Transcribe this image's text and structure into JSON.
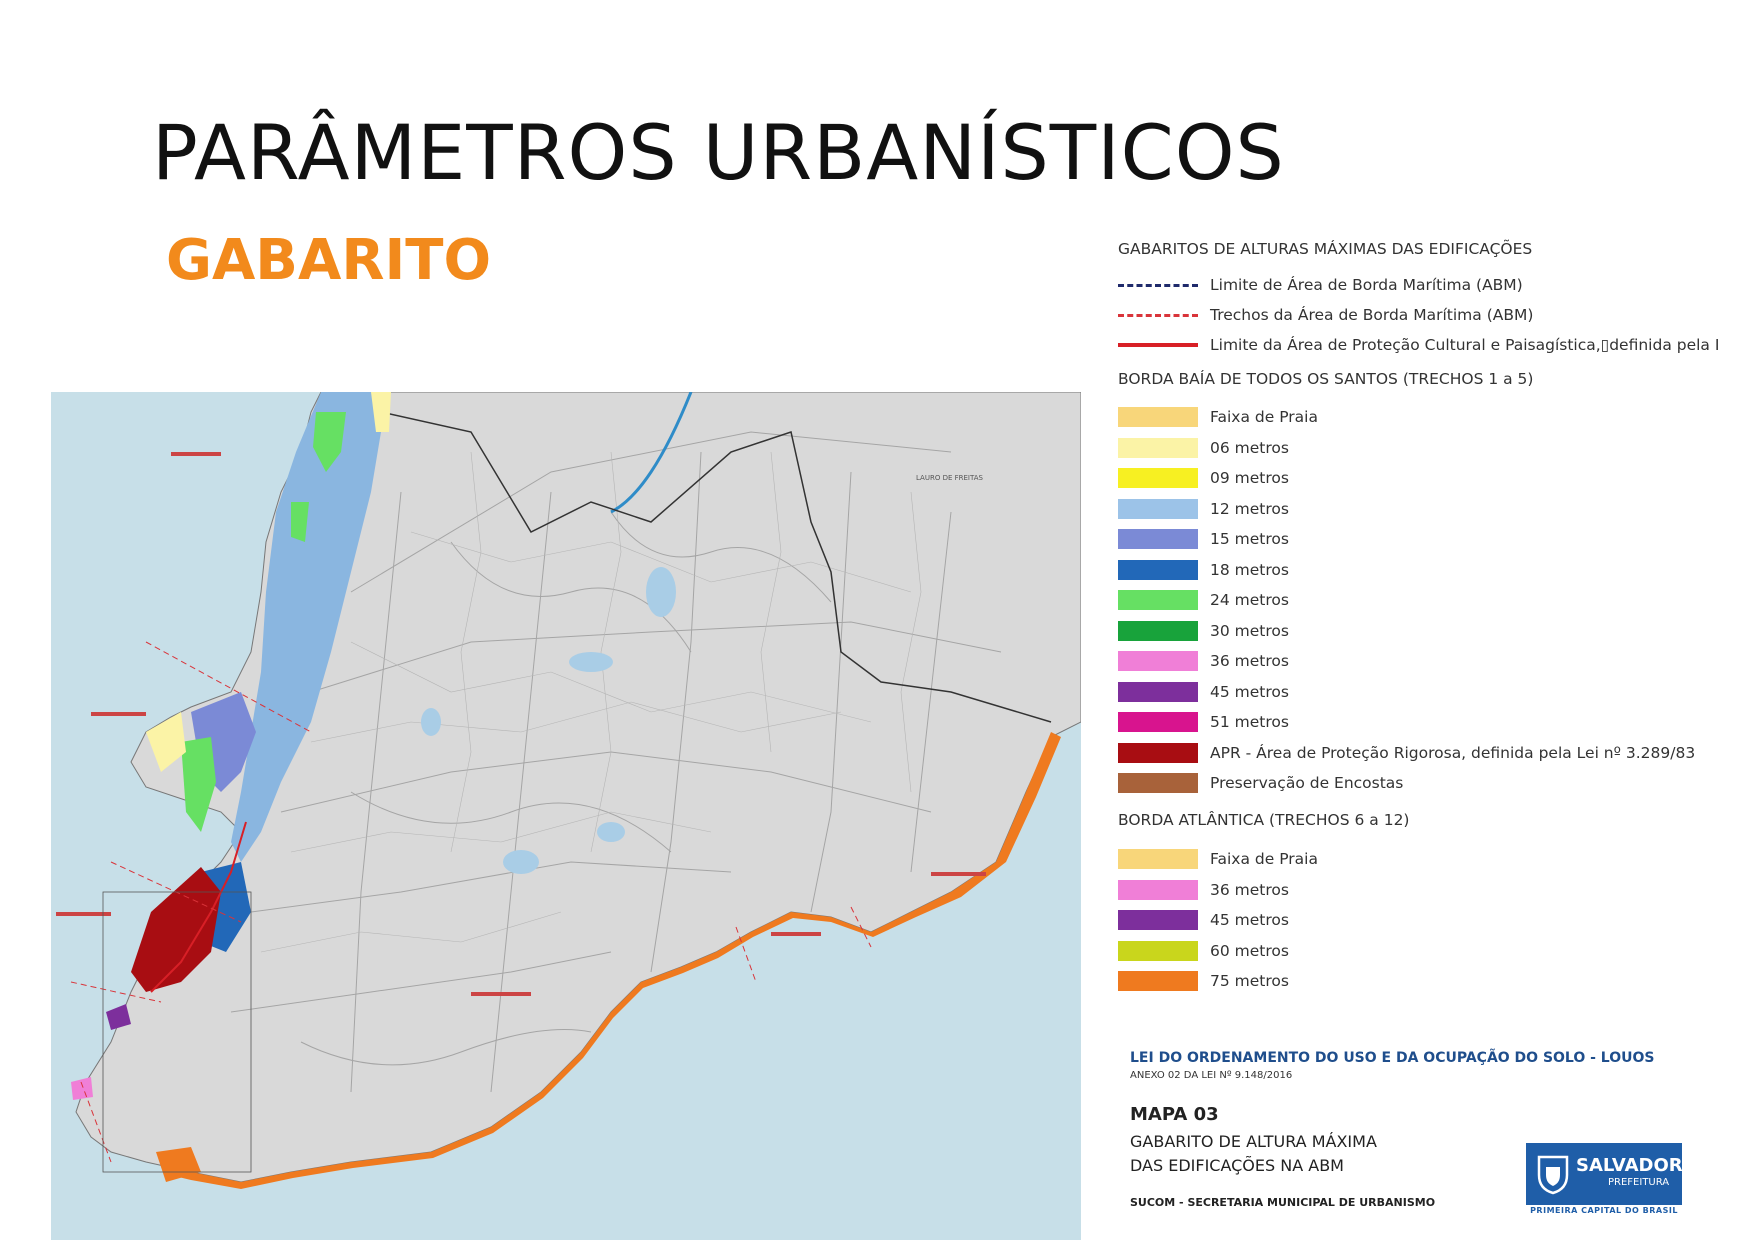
{
  "slide": {
    "title": "PARÂMETROS URBANÍSTICOS",
    "subtitle": "GABARITO"
  },
  "map": {
    "labels": {
      "lauro": "LAURO DE FREITAS"
    },
    "colors": {
      "sea": "#c7dfe8",
      "land": "#d8d8d8",
      "roads": "#9a9a9a"
    }
  },
  "legend": {
    "heading": "GABARITOS DE ALTURAS MÁXIMAS DAS EDIFICAÇÕES",
    "lines": [
      {
        "label": "Limite de Área de Borda Marítima (ABM)",
        "color": "#1f2a6b",
        "style": "dashed"
      },
      {
        "label": "Trechos da Área de Borda Marítima (ABM)",
        "color": "#d9343a",
        "style": "dashed"
      },
      {
        "label": "Limite da Área de Proteção Cultural e Paisagística,▯definida pela I",
        "color": "#d81f26",
        "style": "solid"
      }
    ],
    "section1": {
      "heading": "BORDA BAÍA DE TODOS OS SANTOS (TRECHOS 1 a 5)",
      "items": [
        {
          "label": "Faixa de Praia",
          "color": "#f8d67a"
        },
        {
          "label": "06 metros",
          "color": "#fbf3a6"
        },
        {
          "label": "09 metros",
          "color": "#f7f022"
        },
        {
          "label": "12 metros",
          "color": "#9cc3e8"
        },
        {
          "label": "15 metros",
          "color": "#7b8ad6"
        },
        {
          "label": "18 metros",
          "color": "#2268b8"
        },
        {
          "label": "24 metros",
          "color": "#66e063"
        },
        {
          "label": "30 metros",
          "color": "#18a33b"
        },
        {
          "label": "36 metros",
          "color": "#f07fd7"
        },
        {
          "label": "45 metros",
          "color": "#7d2f9c"
        },
        {
          "label": "51 metros",
          "color": "#d8148e"
        },
        {
          "label": "APR - Área de Proteção Rigorosa, definida pela Lei nº 3.289/83",
          "color": "#a80d12"
        },
        {
          "label": "Preservação de Encostas",
          "color": "#a8623a"
        }
      ]
    },
    "section2": {
      "heading": "BORDA ATLÂNTICA (TRECHOS 6 a 12)",
      "items": [
        {
          "label": "Faixa de Praia",
          "color": "#f8d67a"
        },
        {
          "label": "36 metros",
          "color": "#f07fd7"
        },
        {
          "label": "45 metros",
          "color": "#7d2f9c"
        },
        {
          "label": "60 metros",
          "color": "#c9d61c"
        },
        {
          "label": "75 metros",
          "color": "#ef7a1f"
        }
      ]
    }
  },
  "footer": {
    "law": "LEI DO ORDENAMENTO DO USO E DA OCUPAÇÃO DO SOLO - LOUOS",
    "annex": "ANEXO 02 DA LEI Nº 9.148/2016",
    "map_number": "MAPA 03",
    "description_line1": "GABARITO DE ALTURA MÁXIMA",
    "description_line2": "DAS EDIFICAÇÕES NA ABM",
    "agency": "SUCOM - SECRETARIA MUNICIPAL DE URBANISMO"
  },
  "logo": {
    "name": "SALVADOR",
    "sub": "PREFEITURA",
    "tagline": "PRIMEIRA CAPITAL DO BRASIL"
  }
}
